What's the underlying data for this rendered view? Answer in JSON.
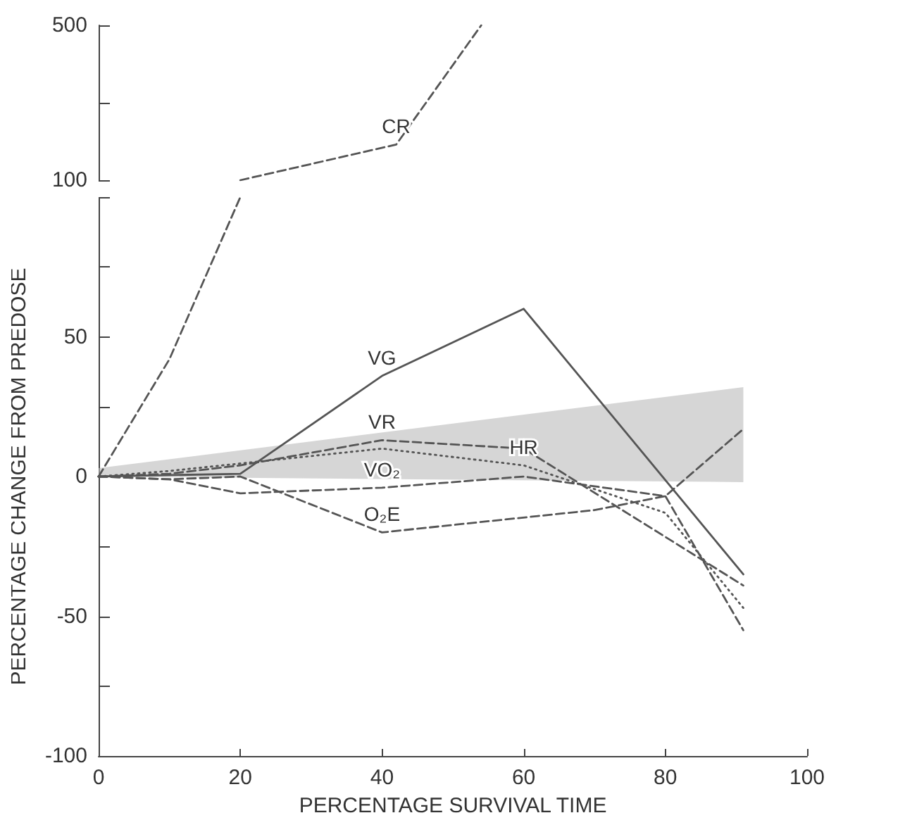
{
  "chart_data": [
    {
      "type": "line",
      "xlim": [
        0,
        100
      ],
      "ylim": [
        100,
        500
      ],
      "yticks": [
        100,
        {
          "value": 300,
          "label": null
        },
        500
      ],
      "tick_labels": "y",
      "grid": false,
      "legend": false,
      "marker": "none",
      "series": [
        {
          "name": "CR",
          "color": "#555555",
          "line_style": "dashed",
          "x": [
            20,
            42,
            54
          ],
          "values": [
            100,
            192,
            500
          ]
        }
      ]
    },
    {
      "type": "line",
      "xlabel": "PERCENTAGE SURVIVAL TIME",
      "ylabel": "PERCENTAGE CHANGE FROM PREDOSE",
      "xlim": [
        0,
        100
      ],
      "xticks": [
        0,
        20,
        40,
        60,
        80,
        100
      ],
      "ylim": [
        -100,
        100
      ],
      "yticks": [
        -100,
        {
          "value": -75,
          "label": null
        },
        -50,
        {
          "value": -25,
          "label": null
        },
        0,
        {
          "value": 25,
          "label": null
        },
        50,
        {
          "value": 75,
          "label": null
        },
        {
          "value": 100,
          "label": null
        }
      ],
      "grid": false,
      "legend": false,
      "marker": "none",
      "series": [
        {
          "color": "#bbbbbb",
          "x": [
            0,
            91
          ],
          "values": [
            null,
            null
          ],
          "lower": [
            0,
            -2
          ],
          "upper": [
            3,
            32
          ]
        },
        {
          "color": "#555555",
          "line_style": "dashed",
          "x": [
            0,
            10,
            20
          ],
          "values": [
            0,
            42,
            100
          ]
        },
        {
          "name": "VG",
          "color": "#555555",
          "line_style": "solid",
          "x": [
            0,
            20,
            40,
            60,
            91
          ],
          "values": [
            0,
            1,
            36,
            60,
            -35
          ]
        },
        {
          "name": "VR",
          "color": "#555555",
          "line_style": "dashed",
          "x": [
            0,
            10,
            20,
            40,
            60,
            91
          ],
          "values": [
            0,
            1,
            4,
            13,
            10,
            -39
          ]
        },
        {
          "name": "HR",
          "color": "#555555",
          "line_style": "dotted",
          "x": [
            0,
            10,
            40,
            60,
            80,
            91
          ],
          "values": [
            0,
            2,
            10,
            4,
            -13,
            -47
          ]
        },
        {
          "name": "VO₂",
          "color": "#555555",
          "line_style": "dashed",
          "x": [
            0,
            10,
            20,
            40,
            60,
            80,
            91
          ],
          "values": [
            0,
            -1,
            -6,
            -4,
            0,
            -7,
            -55
          ]
        },
        {
          "name": "O₂E",
          "color": "#555555",
          "line_style": "dashed",
          "x": [
            0,
            10,
            20,
            40,
            70,
            80,
            91
          ],
          "values": [
            0,
            -1,
            0,
            -20,
            -12,
            -7,
            17
          ]
        }
      ]
    }
  ]
}
